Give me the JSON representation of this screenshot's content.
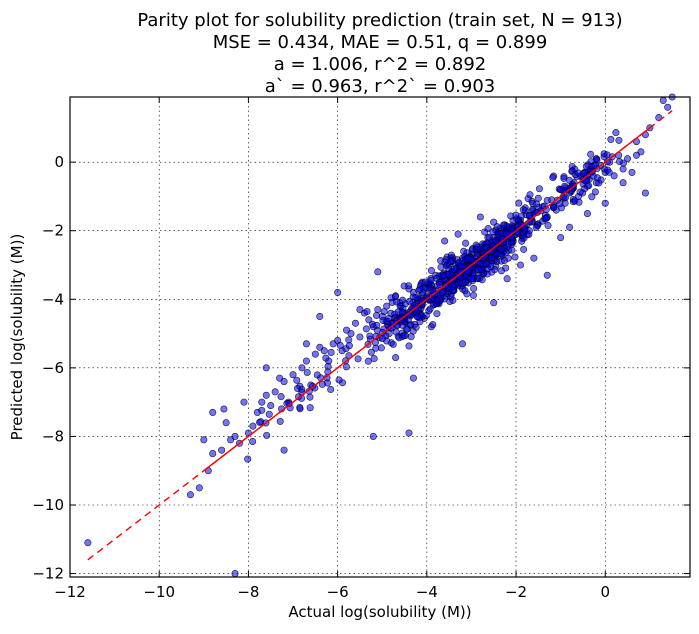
{
  "chart_data": {
    "type": "scatter",
    "title_lines": [
      "Parity plot for solubility prediction (train set, N = 913)",
      "MSE = 0.434, MAE = 0.51, q = 0.899",
      "a = 1.006, r^2 = 0.892",
      "a` = 0.963, r^2` = 0.903"
    ],
    "xlabel": "Actual log(solubility (M))",
    "ylabel": "Predicted log(solubility (M))",
    "xlim": [
      -12,
      1.9
    ],
    "ylim": [
      -12.1,
      1.9
    ],
    "xticks": [
      -12,
      -10,
      -8,
      -6,
      -4,
      -2,
      0
    ],
    "yticks": [
      -12,
      -10,
      -8,
      -6,
      -4,
      -2,
      0
    ],
    "xtick_labels": [
      "−12",
      "−10",
      "−8",
      "−6",
      "−4",
      "−2",
      "0"
    ],
    "ytick_labels": [
      "−12",
      "−10",
      "−8",
      "−6",
      "−4",
      "−2",
      "0"
    ],
    "grid": true,
    "point_color": "#0000ff",
    "point_edge_color": "#000000",
    "n_points": 913,
    "identity_line": {
      "x": [
        -11.6,
        1.5
      ],
      "y": [
        -11.6,
        1.5
      ],
      "color": "#ff0000",
      "style": "dashed"
    },
    "fit_line": {
      "x": [
        -9.0,
        1.0
      ],
      "y": [
        -9.0,
        1.0
      ],
      "color": "#ff0000",
      "style": "solid"
    },
    "points": {
      "x": [
        -11.6,
        -9.3,
        -9.1,
        -8.9,
        -8.8,
        -8.6,
        -8.55,
        -8.5,
        -8.4,
        -8.3,
        -8.2,
        -8.1,
        -8.0,
        -7.9,
        -7.8,
        -7.7,
        -7.6,
        -7.5,
        -7.4,
        -7.3,
        -7.2,
        -7.1,
        -7.0,
        -6.9,
        -6.8,
        -6.7,
        -6.6,
        -6.5,
        -6.4,
        -6.3,
        -6.2,
        -6.1,
        -6.0,
        -5.9,
        -5.8,
        -5.7,
        -5.6,
        -5.5,
        -5.4,
        -5.3,
        -5.2,
        -5.1,
        -5.0,
        -4.9,
        -4.8,
        -4.7,
        -4.6,
        -4.5,
        -4.4,
        -4.3,
        -4.2,
        -4.1,
        -4.0,
        -3.9,
        -3.8,
        -3.7,
        -3.6,
        -3.5,
        -3.4,
        -3.3,
        -3.2,
        -3.1,
        -3.0,
        -2.9,
        -2.8,
        -2.7,
        -2.6,
        -2.5,
        -2.4,
        -2.3,
        -2.2,
        -2.1,
        -2.0,
        -1.9,
        -1.8,
        -1.7,
        -1.6,
        -1.5,
        -1.4,
        -1.3,
        -1.2,
        -1.1,
        -1.0,
        -0.9,
        -0.8,
        -0.7,
        -0.6,
        -0.5,
        -0.4,
        -0.3,
        -0.2,
        -0.1,
        0.0,
        0.1,
        0.2,
        0.3,
        0.4,
        0.5,
        0.6,
        0.7,
        0.8,
        0.9,
        1.0,
        1.2,
        1.4,
        1.5,
        -8.3,
        -5.2,
        -4.4,
        -3.2,
        -1.3,
        0.0,
        0.7,
        -7.6,
        -6.0,
        -4.3,
        -2.5,
        -1.0,
        0.4,
        -6.7,
        -5.5,
        -3.6,
        -2.8,
        -1.6,
        -0.4,
        -8.8,
        -7.2,
        -5.1,
        -3.9,
        -2.2,
        -0.8,
        1.3,
        -9.0,
        -6.4,
        -4.7,
        -3.3,
        -1.9,
        -0.2,
        0.9
      ],
      "y": [
        -11.1,
        -9.7,
        -9.5,
        -9.0,
        -8.5,
        -8.4,
        -7.2,
        -7.6,
        -8.1,
        -8.0,
        -8.2,
        -7.0,
        -7.9,
        -7.7,
        -7.3,
        -7.0,
        -6.8,
        -7.1,
        -6.7,
        -6.3,
        -6.4,
        -7.0,
        -6.2,
        -6.6,
        -6.0,
        -5.8,
        -6.5,
        -5.6,
        -5.4,
        -5.5,
        -5.8,
        -5.3,
        -5.2,
        -5.5,
        -4.9,
        -5.0,
        -4.7,
        -5.1,
        -4.4,
        -4.6,
        -4.8,
        -4.3,
        -4.5,
        -4.2,
        -4.7,
        -3.9,
        -4.1,
        -4.4,
        -3.7,
        -3.8,
        -4.0,
        -3.5,
        -3.9,
        -3.6,
        -3.3,
        -3.5,
        -3.7,
        -3.0,
        -3.2,
        -3.4,
        -2.8,
        -3.1,
        -2.7,
        -2.9,
        -2.6,
        -2.4,
        -2.8,
        -2.2,
        -2.5,
        -2.3,
        -2.0,
        -2.4,
        -2.1,
        -1.7,
        -1.9,
        -2.0,
        -1.5,
        -1.8,
        -1.3,
        -1.6,
        -1.1,
        -1.4,
        -0.8,
        -1.2,
        -0.9,
        -0.6,
        -1.0,
        -0.5,
        -0.7,
        -0.3,
        -0.6,
        -0.1,
        -0.3,
        0.0,
        -0.4,
        0.2,
        -0.2,
        0.1,
        -0.3,
        0.6,
        0.3,
        0.8,
        1.0,
        1.3,
        1.6,
        1.9,
        -12.0,
        -8.0,
        -7.9,
        -5.3,
        -3.3,
        -1.2,
        0.2,
        -6.0,
        -3.8,
        -6.3,
        -4.1,
        -2.2,
        -0.6,
        -5.3,
        -4.3,
        -2.3,
        -1.6,
        -2.8,
        -1.5,
        -7.3,
        -8.4,
        -3.2,
        -4.8,
        -3.4,
        -1.9,
        1.8,
        -8.1,
        -4.5,
        -5.7,
        -2.1,
        -3.0,
        0.1,
        -0.9
      ]
    }
  }
}
